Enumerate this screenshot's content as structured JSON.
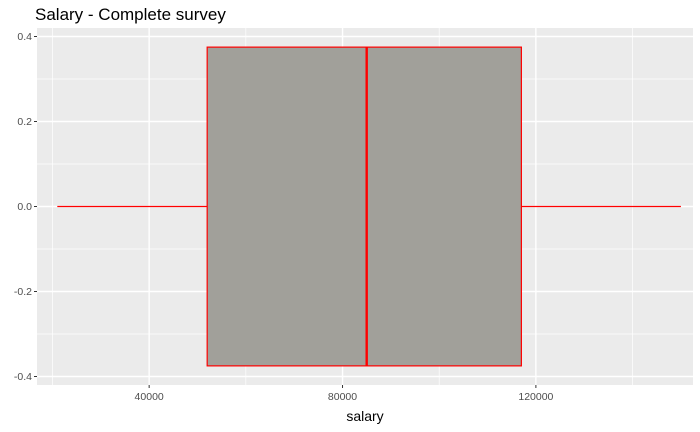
{
  "chart_data": {
    "type": "boxplot",
    "title": "Salary - Complete survey",
    "xlabel": "salary",
    "ylabel": "",
    "xlim": [
      16800,
      152500
    ],
    "ylim": [
      -0.42,
      0.42
    ],
    "x_ticks": [
      40000,
      80000,
      120000
    ],
    "x_tick_labels": [
      "40000",
      "80000",
      "120000"
    ],
    "y_ticks": [
      -0.4,
      -0.2,
      0.0,
      0.2,
      0.4
    ],
    "y_tick_labels": [
      "-0.4",
      "-0.2",
      "0.0",
      "0.2",
      "0.4"
    ],
    "box": {
      "whisker_low": 21000,
      "q1": 52000,
      "median": 85000,
      "q3": 117000,
      "whisker_high": 150000,
      "y_low": -0.375,
      "y_high": 0.375
    },
    "colors": {
      "panel": "#ebebeb",
      "grid_major": "#ffffff",
      "box_fill": "#a1a09a",
      "box_stroke": "#ff0000",
      "tick_text": "#4d4d4d"
    },
    "grid": true
  }
}
